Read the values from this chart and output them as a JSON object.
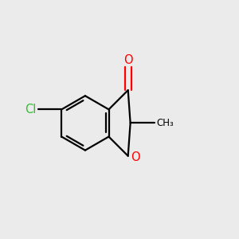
{
  "background_color": "#ebebeb",
  "bond_color": "#000000",
  "oxygen_color": "#ff0000",
  "chlorine_color": "#33bb33",
  "bond_width": 1.6,
  "figsize": [
    3.0,
    3.0
  ],
  "dpi": 100,
  "xlim": [
    0.0,
    1.0
  ],
  "ylim": [
    0.15,
    0.95
  ]
}
